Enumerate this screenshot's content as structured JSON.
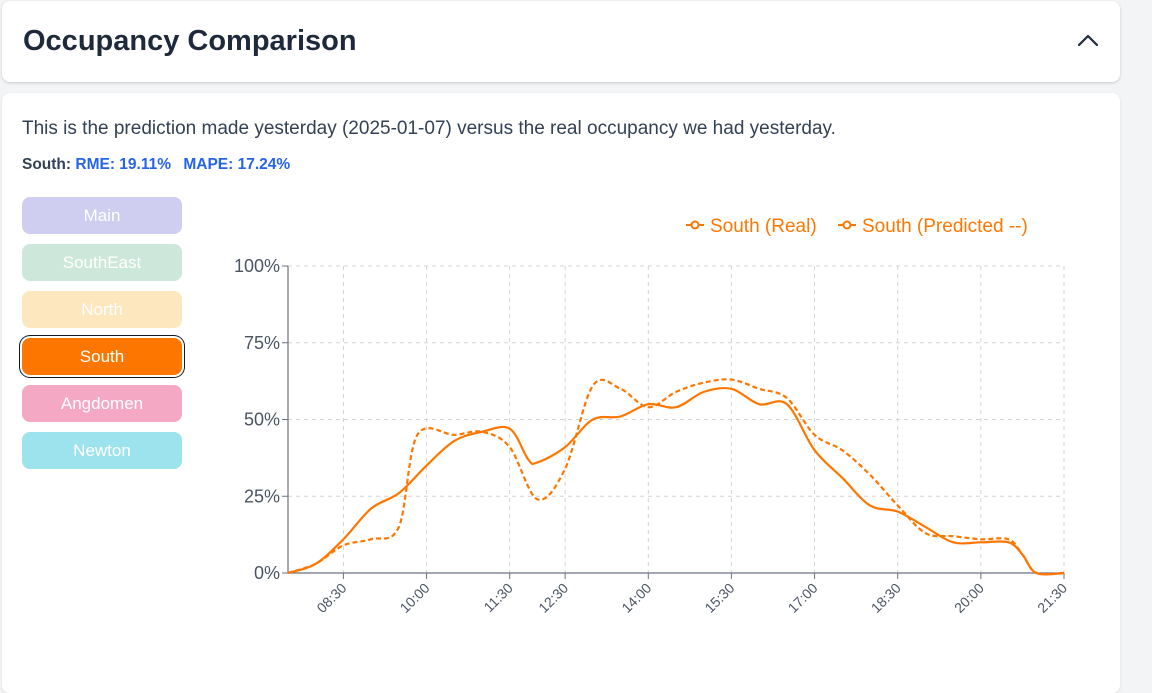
{
  "header": {
    "title": "Occupancy Comparison"
  },
  "description": "This is the prediction made yesterday (2025-01-07) versus the real occupancy we had yesterday.",
  "metrics": {
    "location_label": "South:",
    "rme": "RME: 19.11%",
    "mape": "MAPE: 17.24%"
  },
  "locations": [
    {
      "label": "Main",
      "color": "#cfcdf0",
      "selected": false
    },
    {
      "label": "SouthEast",
      "color": "#cde8da",
      "selected": false
    },
    {
      "label": "North",
      "color": "#fde7bf",
      "selected": false
    },
    {
      "label": "South",
      "color": "#fd7700",
      "selected": true
    },
    {
      "label": "Angdomen",
      "color": "#f5a8c3",
      "selected": false
    },
    {
      "label": "Newton",
      "color": "#9de3ee",
      "selected": false
    }
  ],
  "icons": {
    "collapse": "chevron-up-icon"
  },
  "chart_data": {
    "type": "line",
    "x_ticks": [
      "08:30",
      "10:00",
      "11:30",
      "12:30",
      "14:00",
      "15:30",
      "17:00",
      "18:30",
      "20:00",
      "21:30"
    ],
    "y_ticks": [
      "0%",
      "25%",
      "50%",
      "75%",
      "100%"
    ],
    "ylim": [
      0,
      100
    ],
    "xlim": [
      "07:30",
      "21:30"
    ],
    "grid": true,
    "legend_position": "top-right",
    "series": [
      {
        "name": "South (Real)",
        "style": "solid",
        "color": "#fd7700",
        "points": [
          [
            "07:30",
            0
          ],
          [
            "08:00",
            3
          ],
          [
            "08:30",
            11
          ],
          [
            "09:00",
            21
          ],
          [
            "09:30",
            26
          ],
          [
            "10:00",
            35
          ],
          [
            "10:30",
            43
          ],
          [
            "11:00",
            46
          ],
          [
            "11:30",
            47
          ],
          [
            "11:50",
            37
          ],
          [
            "12:00",
            36
          ],
          [
            "12:30",
            41
          ],
          [
            "13:00",
            50
          ],
          [
            "13:30",
            51
          ],
          [
            "14:00",
            55
          ],
          [
            "14:30",
            54
          ],
          [
            "15:00",
            59
          ],
          [
            "15:30",
            60
          ],
          [
            "16:00",
            55
          ],
          [
            "16:30",
            55
          ],
          [
            "17:00",
            40
          ],
          [
            "17:30",
            31
          ],
          [
            "18:00",
            22
          ],
          [
            "18:30",
            20
          ],
          [
            "19:00",
            15
          ],
          [
            "19:30",
            10
          ],
          [
            "20:00",
            10
          ],
          [
            "20:30",
            10
          ],
          [
            "20:45",
            6
          ],
          [
            "21:00",
            0
          ],
          [
            "21:30",
            0
          ]
        ]
      },
      {
        "name": "South (Predicted --)",
        "style": "dashed",
        "color": "#fd7700",
        "points": [
          [
            "07:30",
            0
          ],
          [
            "08:00",
            3
          ],
          [
            "08:30",
            9
          ],
          [
            "09:00",
            11
          ],
          [
            "09:30",
            15
          ],
          [
            "09:50",
            45
          ],
          [
            "10:30",
            45
          ],
          [
            "11:00",
            46
          ],
          [
            "11:30",
            41
          ],
          [
            "12:00",
            24
          ],
          [
            "12:30",
            34
          ],
          [
            "13:00",
            61
          ],
          [
            "13:30",
            60
          ],
          [
            "14:00",
            54
          ],
          [
            "14:30",
            59
          ],
          [
            "15:00",
            62
          ],
          [
            "15:30",
            63
          ],
          [
            "16:00",
            60
          ],
          [
            "16:30",
            57
          ],
          [
            "17:00",
            45
          ],
          [
            "17:30",
            40
          ],
          [
            "18:00",
            32
          ],
          [
            "18:30",
            22
          ],
          [
            "19:00",
            13
          ],
          [
            "19:30",
            12
          ],
          [
            "20:00",
            11
          ],
          [
            "20:30",
            11
          ],
          [
            "20:45",
            6
          ],
          [
            "21:00",
            0
          ],
          [
            "21:30",
            0
          ]
        ]
      }
    ]
  }
}
